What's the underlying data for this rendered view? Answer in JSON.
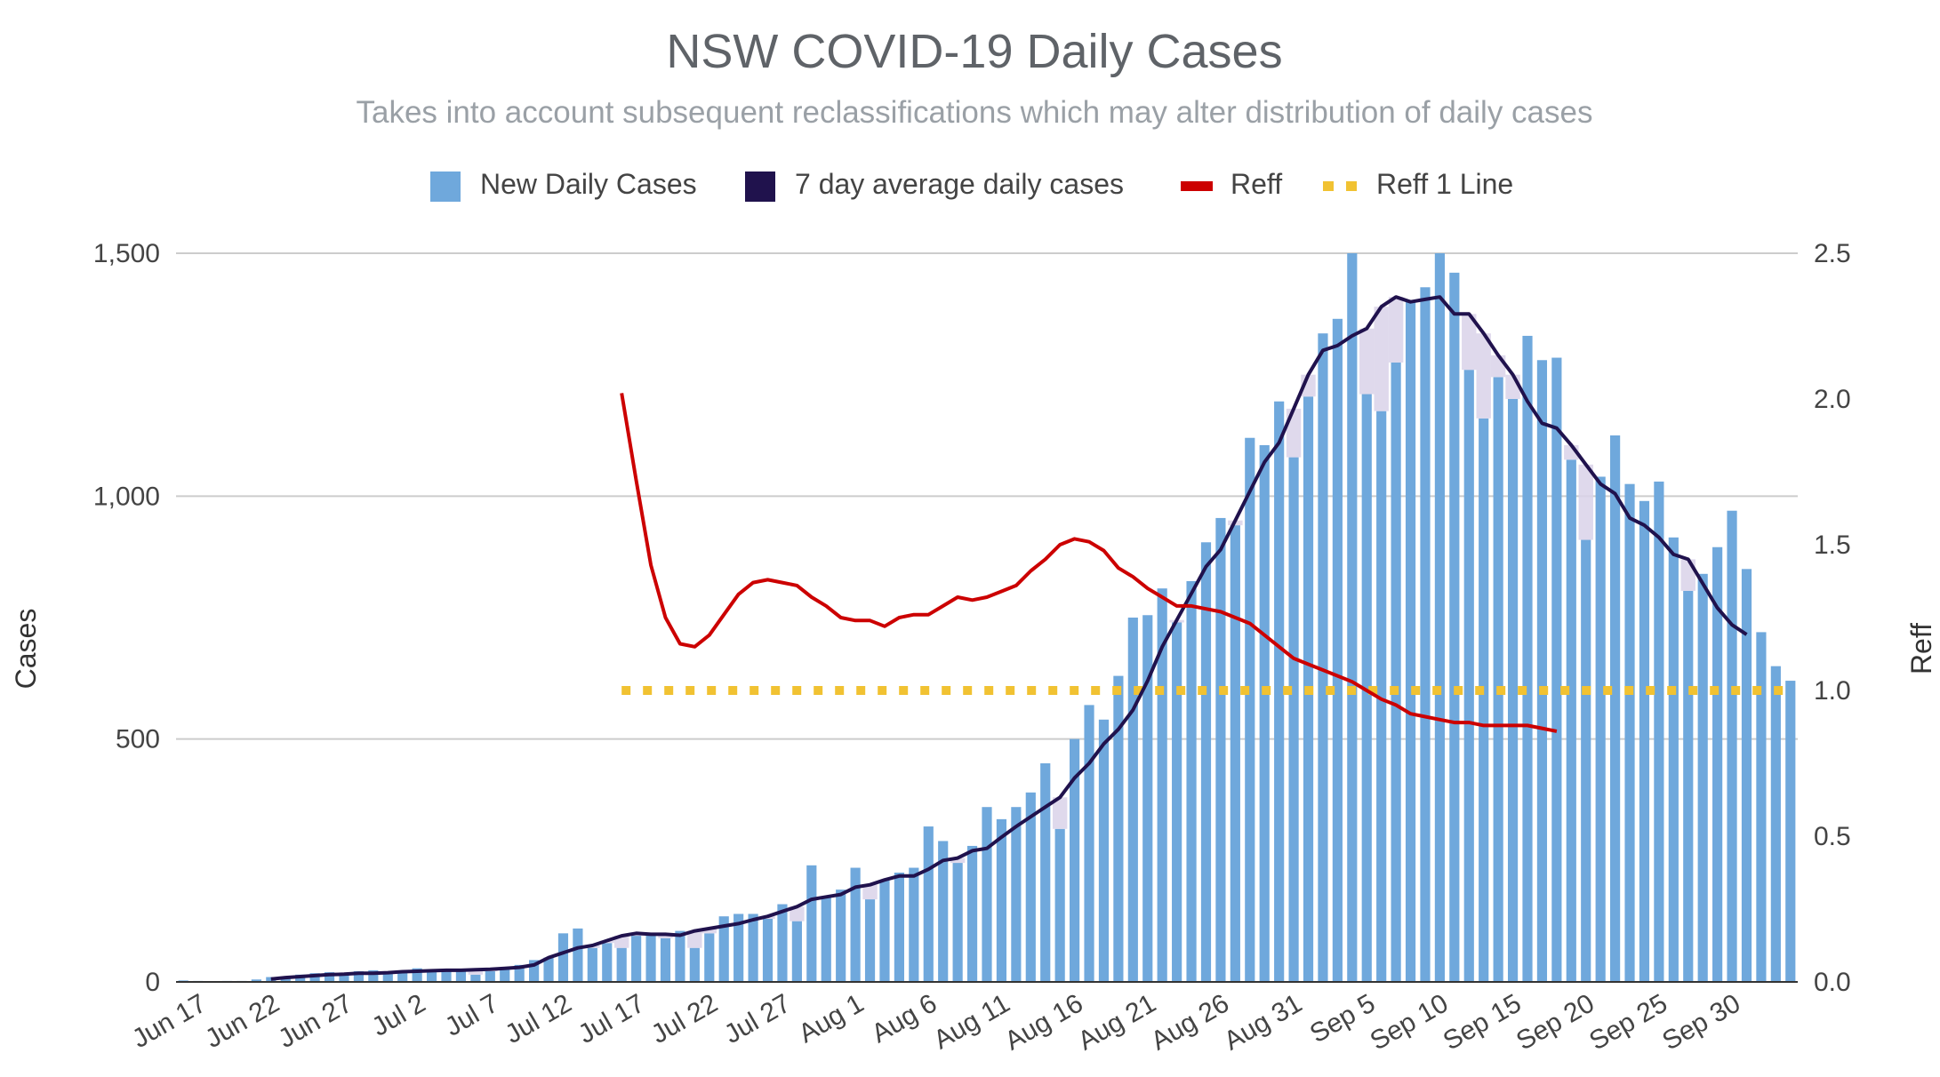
{
  "chart_data": {
    "type": "bar",
    "title": "NSW COVID-19 Daily Cases",
    "subtitle": "Takes into account subsequent reclassifications which may alter distribution of daily cases",
    "legend": [
      {
        "label": "New Daily Cases",
        "color": "#6fa8dc",
        "kind": "square"
      },
      {
        "label": "7 day average daily cases",
        "color": "#20124d",
        "kind": "square"
      },
      {
        "label": "Reff",
        "color": "#cc0000",
        "kind": "line"
      },
      {
        "label": "Reff 1 Line",
        "color": "#f1c232",
        "kind": "dotted"
      }
    ],
    "ylabel": "Cases",
    "y2label": "Reff",
    "ylim": [
      0,
      1500
    ],
    "y2lim": [
      0,
      2.5
    ],
    "yticks": [
      {
        "value": 0,
        "label": "0"
      },
      {
        "value": 500,
        "label": "500"
      },
      {
        "value": 1000,
        "label": "1,000"
      },
      {
        "value": 1500,
        "label": "1,500"
      }
    ],
    "y2ticks": [
      {
        "value": 0,
        "label": "0.0"
      },
      {
        "value": 0.5,
        "label": "0.5"
      },
      {
        "value": 1.0,
        "label": "1.0"
      },
      {
        "value": 1.5,
        "label": "1.5"
      },
      {
        "value": 2.0,
        "label": "2.0"
      },
      {
        "value": 2.5,
        "label": "2.5"
      }
    ],
    "xticks": [
      {
        "index": 0,
        "label": "Jun 17"
      },
      {
        "index": 5,
        "label": "Jun 22"
      },
      {
        "index": 10,
        "label": "Jun 27"
      },
      {
        "index": 15,
        "label": "Jul 2"
      },
      {
        "index": 20,
        "label": "Jul 7"
      },
      {
        "index": 25,
        "label": "Jul 12"
      },
      {
        "index": 30,
        "label": "Jul 17"
      },
      {
        "index": 35,
        "label": "Jul 22"
      },
      {
        "index": 40,
        "label": "Jul 27"
      },
      {
        "index": 45,
        "label": "Aug 1"
      },
      {
        "index": 50,
        "label": "Aug 6"
      },
      {
        "index": 55,
        "label": "Aug 11"
      },
      {
        "index": 60,
        "label": "Aug 16"
      },
      {
        "index": 65,
        "label": "Aug 21"
      },
      {
        "index": 70,
        "label": "Aug 26"
      },
      {
        "index": 75,
        "label": "Aug 31"
      },
      {
        "index": 80,
        "label": "Sep 5"
      },
      {
        "index": 85,
        "label": "Sep 10"
      },
      {
        "index": 90,
        "label": "Sep 15"
      },
      {
        "index": 95,
        "label": "Sep 20"
      },
      {
        "index": 100,
        "label": "Sep 25"
      },
      {
        "index": 105,
        "label": "Sep 30"
      }
    ],
    "first_date": "Jun 17",
    "series": [
      {
        "name": "New Daily Cases",
        "type": "bar",
        "axis": "left",
        "color": "#6fa8dc",
        "values": [
          3,
          2,
          1,
          2,
          2,
          5,
          10,
          10,
          15,
          18,
          20,
          15,
          22,
          24,
          18,
          20,
          28,
          22,
          25,
          27,
          15,
          22,
          30,
          35,
          45,
          50,
          100,
          110,
          70,
          80,
          70,
          95,
          100,
          90,
          105,
          70,
          100,
          135,
          140,
          140,
          130,
          160,
          125,
          240,
          175,
          190,
          235,
          170,
          210,
          225,
          235,
          320,
          290,
          245,
          280,
          360,
          335,
          360,
          390,
          450,
          315,
          500,
          570,
          540,
          630,
          750,
          755,
          810,
          740,
          825,
          905,
          955,
          940,
          1120,
          1105,
          1195,
          1080,
          1205,
          1335,
          1365,
          1500,
          1210,
          1175,
          1275,
          1400,
          1430,
          1500,
          1460,
          1260,
          1160,
          1245,
          1200,
          1330,
          1280,
          1285,
          1075,
          910,
          1040,
          1125,
          1025,
          990,
          1030,
          915,
          805,
          840,
          895,
          970,
          850,
          720,
          650,
          620
        ]
      },
      {
        "name": "7 day average daily cases",
        "type": "line",
        "axis": "left",
        "color": "#20124d",
        "start_index": 6,
        "values": [
          6,
          9,
          11,
          13,
          15,
          16,
          18,
          18,
          19,
          21,
          22,
          23,
          24,
          24,
          25,
          26,
          28,
          30,
          35,
          50,
          60,
          70,
          75,
          85,
          95,
          100,
          98,
          98,
          96,
          105,
          110,
          115,
          120,
          128,
          135,
          145,
          155,
          170,
          175,
          180,
          195,
          200,
          210,
          218,
          218,
          232,
          250,
          255,
          270,
          275,
          298,
          320,
          340,
          360,
          380,
          420,
          450,
          490,
          520,
          560,
          620,
          690,
          745,
          800,
          855,
          890,
          950,
          1010,
          1070,
          1110,
          1180,
          1250,
          1300,
          1310,
          1330,
          1345,
          1390,
          1410,
          1400,
          1405,
          1410,
          1375,
          1375,
          1335,
          1290,
          1250,
          1195,
          1150,
          1140,
          1105,
          1065,
          1025,
          1005,
          955,
          940,
          915,
          880,
          870,
          820,
          770,
          735,
          715
        ]
      },
      {
        "name": "Reff",
        "type": "line",
        "axis": "right",
        "color": "#cc0000",
        "start_index": 30,
        "values": [
          2.02,
          1.72,
          1.43,
          1.25,
          1.16,
          1.15,
          1.19,
          1.26,
          1.33,
          1.37,
          1.38,
          1.37,
          1.36,
          1.32,
          1.29,
          1.25,
          1.24,
          1.24,
          1.22,
          1.25,
          1.26,
          1.26,
          1.29,
          1.32,
          1.31,
          1.32,
          1.34,
          1.36,
          1.41,
          1.45,
          1.5,
          1.52,
          1.51,
          1.48,
          1.42,
          1.39,
          1.35,
          1.32,
          1.29,
          1.29,
          1.28,
          1.27,
          1.25,
          1.23,
          1.19,
          1.15,
          1.11,
          1.09,
          1.07,
          1.05,
          1.03,
          1.0,
          0.97,
          0.95,
          0.92,
          0.91,
          0.9,
          0.89,
          0.89,
          0.88,
          0.88,
          0.88,
          0.88,
          0.87,
          0.86
        ]
      },
      {
        "name": "Reff 1 Line",
        "type": "line",
        "axis": "right",
        "color": "#f1c232",
        "start_index": 30,
        "end_index": 110,
        "value": 1.0
      }
    ]
  }
}
